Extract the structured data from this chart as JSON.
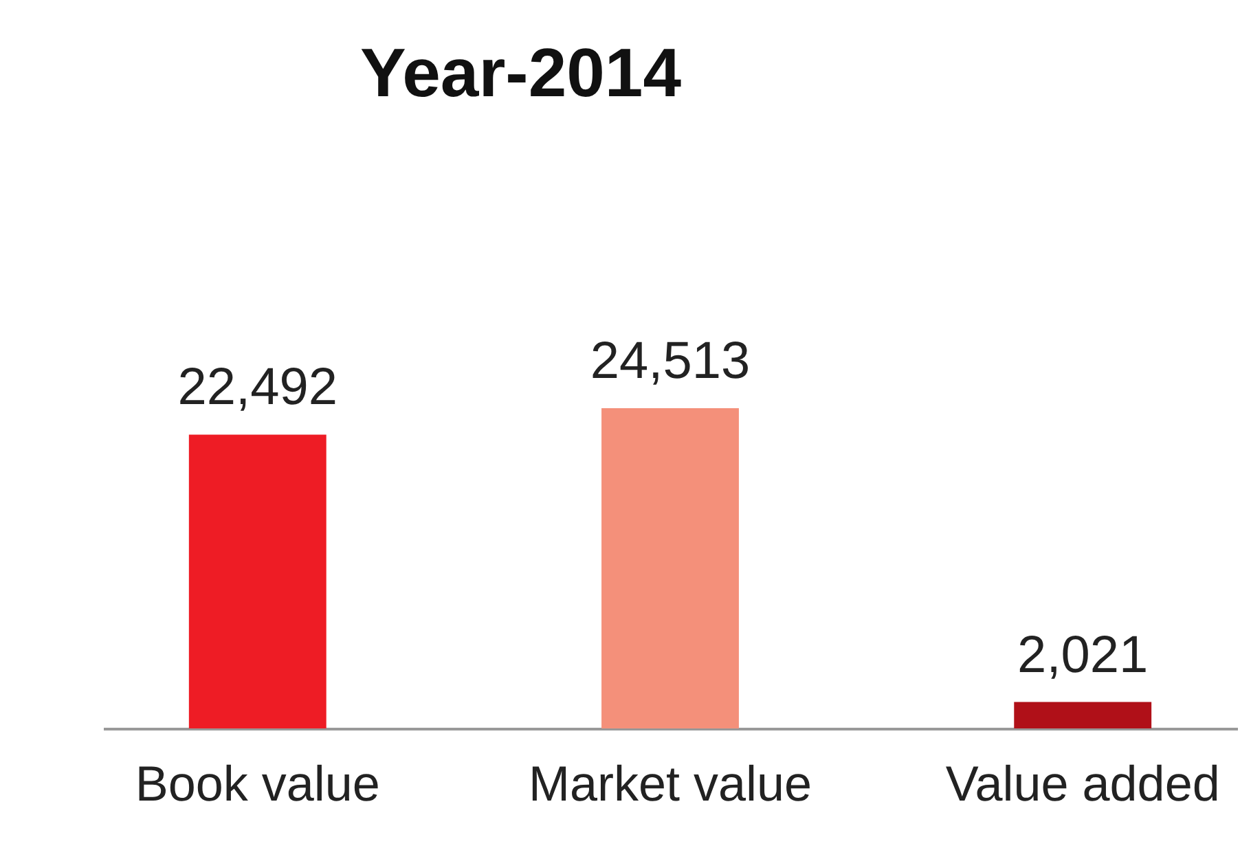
{
  "chart_data": {
    "type": "bar",
    "title": "Year-2014",
    "categories": [
      "Book value",
      "Market value",
      "Value added"
    ],
    "values": [
      22492,
      24513,
      2021
    ],
    "value_labels": [
      "22,492",
      "24,513",
      "2,021"
    ],
    "colors": [
      "#ee1c25",
      "#f4907a",
      "#b01018"
    ],
    "grid": false,
    "legend": false
  }
}
